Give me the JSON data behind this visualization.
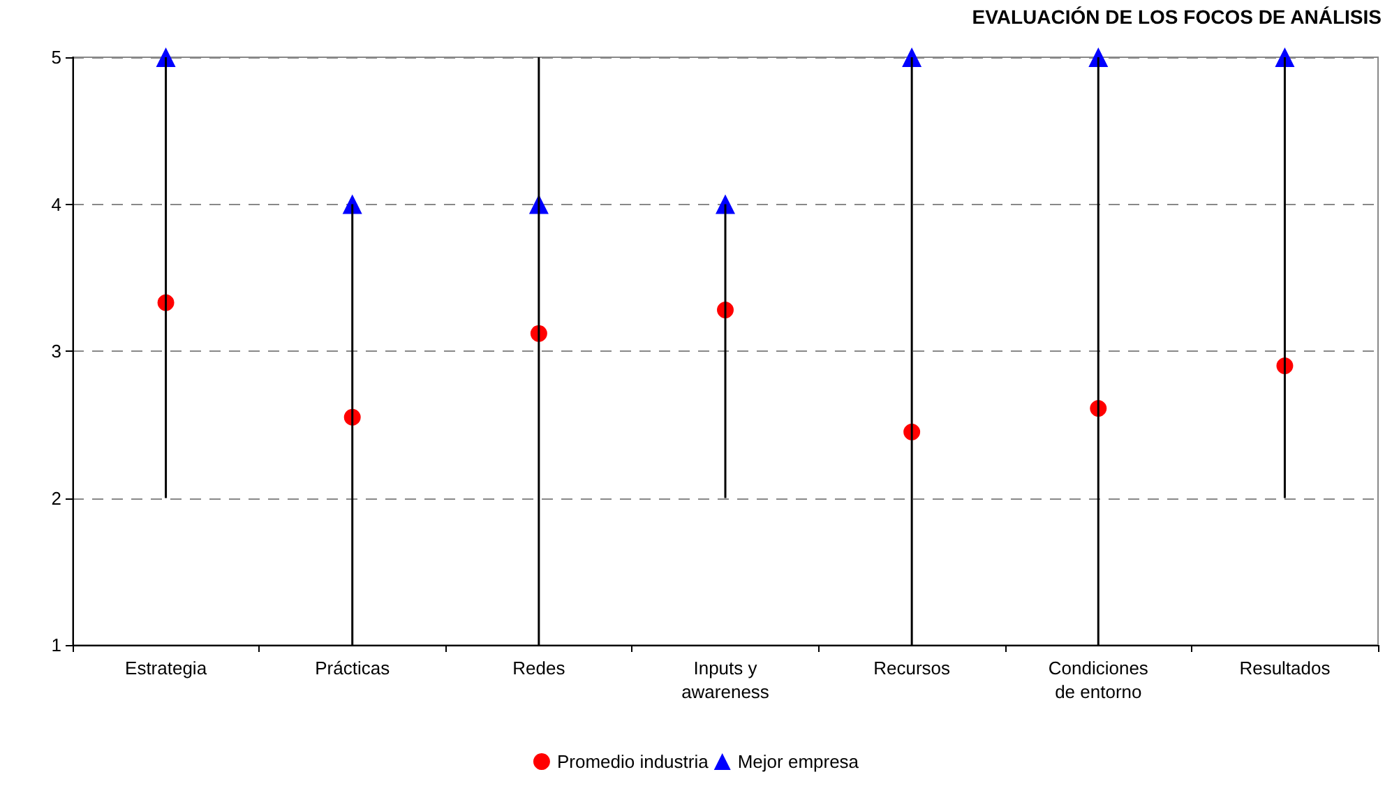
{
  "chart_data": {
    "type": "scatter",
    "title": "EVALUACIÓN DE LOS FOCOS DE ANÁLISIS",
    "categories": [
      "Estrategia",
      "Prácticas",
      "Redes",
      "Inputs y\nawareness",
      "Recursos",
      "Condiciones\nde entorno",
      "Resultados"
    ],
    "series": [
      {
        "type": "bar",
        "color": "#000000",
        "base": [
          2,
          1,
          1,
          2,
          1,
          1,
          2
        ],
        "values": [
          3,
          3,
          4,
          2,
          4,
          4,
          3
        ]
      },
      {
        "name": "Promedio industria",
        "color": "#ff0000",
        "marker": "circle",
        "values": [
          3.33,
          2.55,
          3.12,
          3.28,
          2.45,
          2.61,
          2.9
        ]
      },
      {
        "name": "Mejor empresa",
        "color": "#0000ff",
        "marker": "triangle",
        "values": [
          5,
          4,
          4,
          4,
          5,
          5,
          5
        ]
      }
    ],
    "ylim": [
      1,
      5
    ],
    "yticks": [
      1,
      2,
      3,
      4,
      5
    ],
    "grid": "y",
    "legend": "bottom"
  }
}
